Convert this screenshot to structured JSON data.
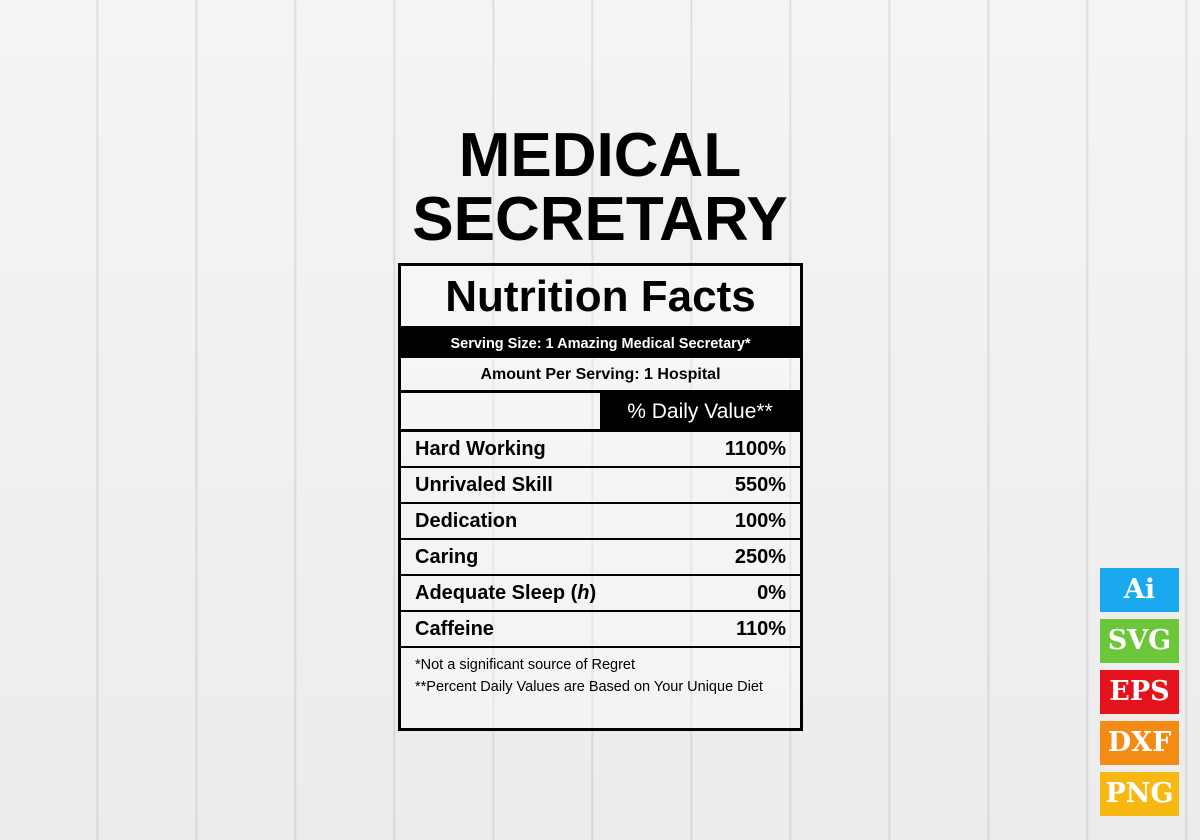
{
  "title": {
    "line1": "MEDICAL",
    "line2": "SECRETARY"
  },
  "label": {
    "heading": "Nutrition Facts",
    "serving_size": "Serving Size: 1 Amazing Medical Secretary*",
    "amount_per_serving": "Amount Per Serving: 1 Hospital",
    "daily_value_header": "% Daily Value**",
    "rows": [
      {
        "name": "Hard Working",
        "value": "1100%"
      },
      {
        "name": "Unrivaled Skill",
        "value": "550%"
      },
      {
        "name": "Dedication",
        "value": "100%"
      },
      {
        "name": "Caring",
        "value": "250%"
      },
      {
        "name": "Adequate Sleep (",
        "italic": "h",
        "name_end": ")",
        "value": "0%"
      },
      {
        "name": "Caffeine",
        "value": "110%"
      }
    ],
    "footnote1": "*Not a significant source of Regret",
    "footnote2": "**Percent Daily Values are Based on Your Unique Diet"
  },
  "badges": [
    {
      "label": "Ai",
      "color": "#1aa9ee"
    },
    {
      "label": "SVG",
      "color": "#6cc63a"
    },
    {
      "label": "EPS",
      "color": "#e5131b"
    },
    {
      "label": "DXF",
      "color": "#f38b15"
    },
    {
      "label": "PNG",
      "color": "#f6b811"
    }
  ]
}
